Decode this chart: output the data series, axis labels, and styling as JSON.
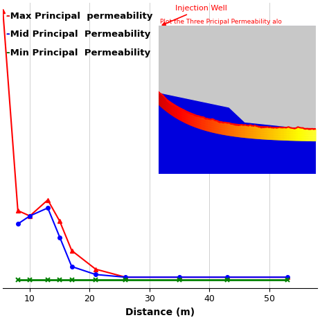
{
  "title": "",
  "xlabel": "Distance (m)",
  "ylabel": "",
  "xlim": [
    5.5,
    58
  ],
  "ylim": [
    -0.02,
    1.05
  ],
  "grid": true,
  "background_color": "#ffffff",
  "legend_labels": [
    "-Max Principal  permeability",
    "-Mid Principal  Permeability",
    "-Min Principal  Permeability"
  ],
  "legend_colors": [
    "red",
    "blue",
    "green"
  ],
  "x_red": [
    5.5,
    8,
    10,
    13,
    15,
    17,
    21,
    26,
    35,
    43,
    53
  ],
  "y_red": [
    1.02,
    0.27,
    0.25,
    0.31,
    0.23,
    0.12,
    0.05,
    0.02,
    0.02,
    0.02,
    0.02
  ],
  "x_blue": [
    8,
    10,
    13,
    15,
    17,
    21,
    26,
    35,
    43,
    53
  ],
  "y_blue": [
    0.22,
    0.25,
    0.28,
    0.17,
    0.06,
    0.03,
    0.02,
    0.02,
    0.02,
    0.02
  ],
  "x_green": [
    8,
    10,
    13,
    15,
    17,
    21,
    26,
    35,
    43,
    53
  ],
  "y_green": [
    0.01,
    0.01,
    0.01,
    0.01,
    0.01,
    0.01,
    0.01,
    0.01,
    0.01,
    0.01
  ],
  "xticks": [
    10,
    20,
    30,
    40,
    50
  ],
  "inset_text_1": "Injection Well",
  "inset_text_2": "Plot the Three Pricipal Permeability alo"
}
